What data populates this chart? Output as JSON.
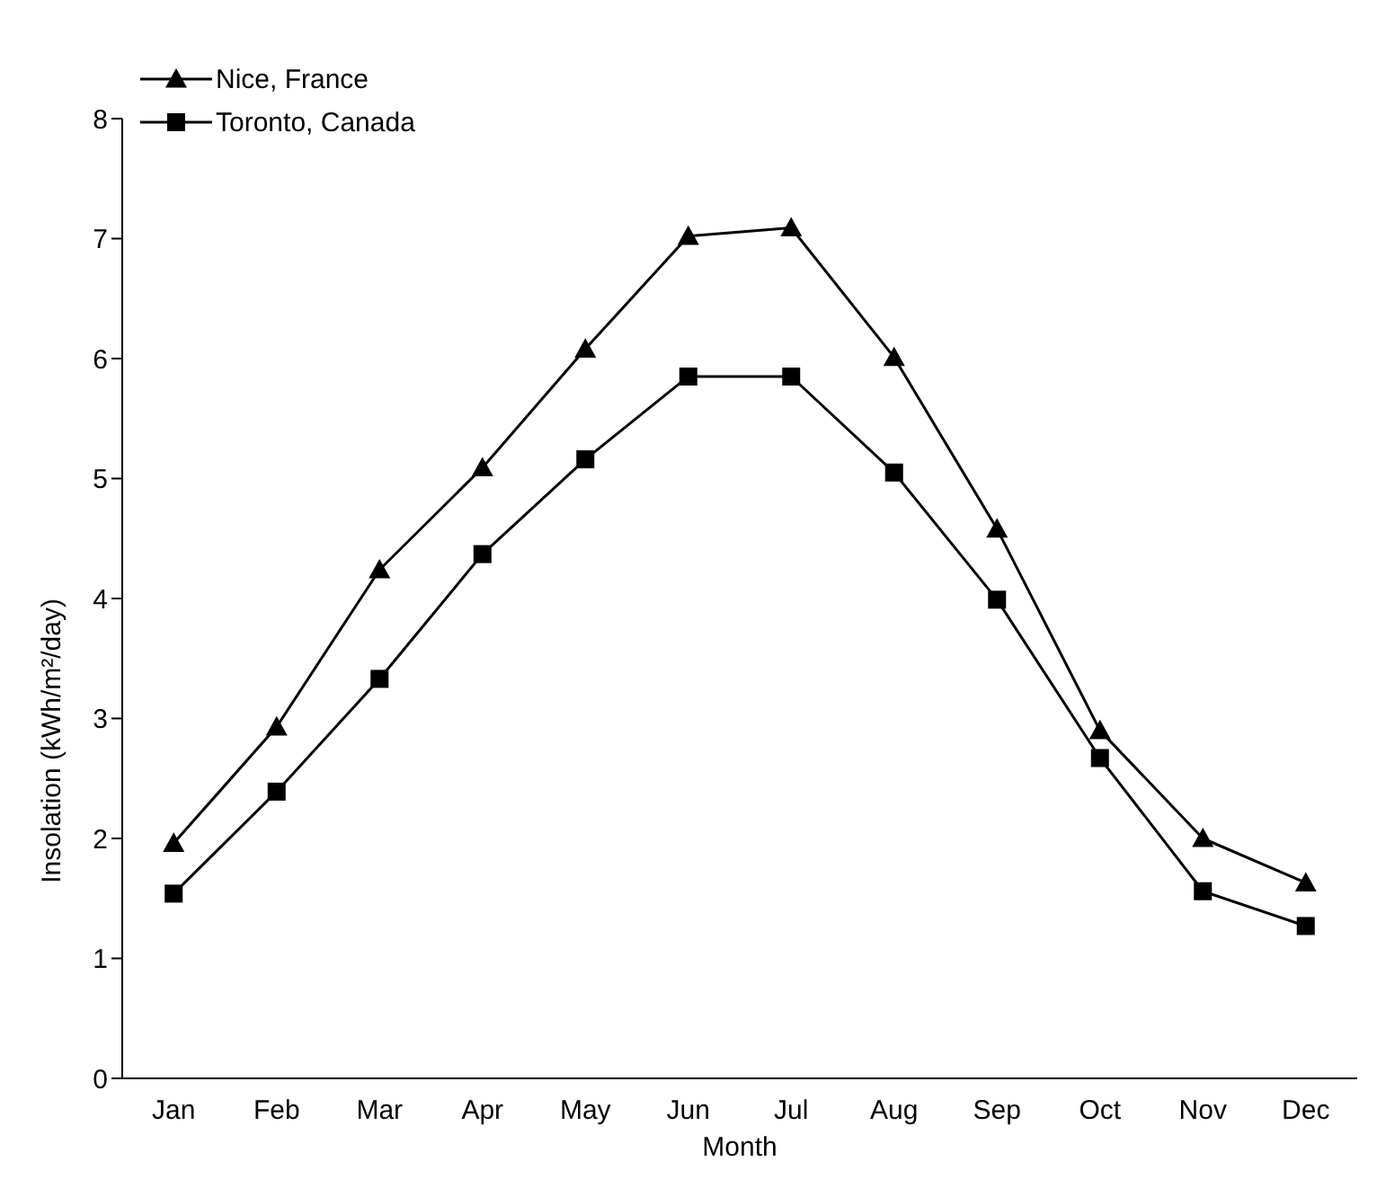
{
  "chart_data": {
    "type": "line",
    "xlabel": "Month",
    "ylabel": "Insolation (kWh/m²/day)",
    "categories": [
      "Jan",
      "Feb",
      "Mar",
      "Apr",
      "May",
      "Jun",
      "Jul",
      "Aug",
      "Sep",
      "Oct",
      "Nov",
      "Dec"
    ],
    "series": [
      {
        "name": "Nice, France",
        "color": "#000000",
        "marker": "triangle",
        "values": [
          1.96,
          2.93,
          4.24,
          5.09,
          6.08,
          7.02,
          7.09,
          6.01,
          4.58,
          2.9,
          2.0,
          1.63
        ]
      },
      {
        "name": "Toronto, Canada",
        "color": "#000000",
        "marker": "square",
        "values": [
          1.54,
          2.39,
          3.33,
          4.37,
          5.16,
          5.85,
          5.85,
          5.05,
          3.99,
          2.67,
          1.56,
          1.27
        ]
      }
    ],
    "ylim": [
      0,
      8
    ],
    "yticks": [
      0,
      1,
      2,
      3,
      4,
      5,
      6,
      7,
      8
    ],
    "grid": false,
    "legend": "top left",
    "line_style": "solid"
  }
}
